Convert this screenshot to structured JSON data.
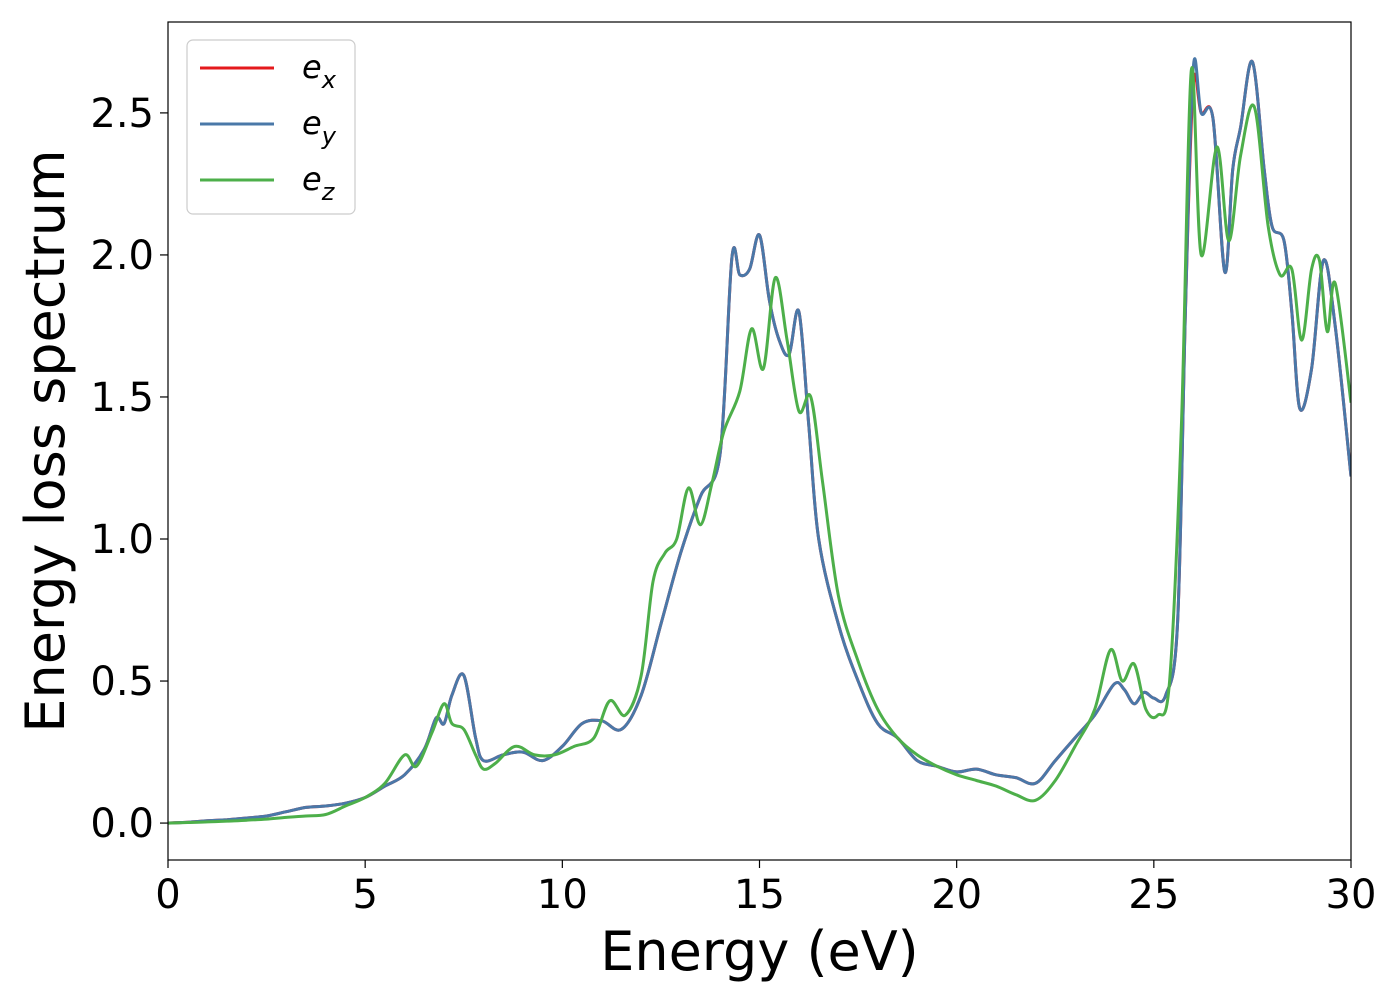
{
  "chart_data": {
    "type": "line",
    "xlabel": "Energy (eV)",
    "ylabel": "Energy loss spectrum",
    "xlim": [
      0,
      30
    ],
    "ylim": [
      -0.13,
      2.82
    ],
    "xticks": [
      "0",
      "5",
      "10",
      "15",
      "20",
      "25",
      "30"
    ],
    "yticks": [
      "0.0",
      "0.5",
      "1.0",
      "1.5",
      "2.0",
      "2.5"
    ],
    "grid": false,
    "legend_position": "top-left",
    "series": [
      {
        "name": "e",
        "subscript": "x",
        "color": "#e41a1c",
        "x": [
          0,
          0.5,
          1,
          1.5,
          2,
          2.5,
          3,
          3.5,
          4,
          4.5,
          5,
          5.5,
          6,
          6.5,
          6.8,
          7,
          7.2,
          7.5,
          7.8,
          8,
          8.5,
          9,
          9.5,
          10,
          10.5,
          11,
          11.5,
          12,
          12.5,
          13,
          13.5,
          14,
          14.3,
          14.5,
          14.75,
          15,
          15.25,
          15.5,
          15.75,
          16,
          16.25,
          16.5,
          17,
          17.5,
          18,
          18.5,
          19,
          19.5,
          20,
          20.5,
          21,
          21.5,
          22,
          22.5,
          23,
          23.5,
          24,
          24.25,
          24.5,
          24.75,
          25,
          25.3,
          25.6,
          25.8,
          26,
          26.2,
          26.5,
          26.8,
          27,
          27.2,
          27.5,
          27.8,
          28,
          28.3,
          28.5,
          28.7,
          29,
          29.3,
          29.6,
          30
        ],
        "y": [
          0,
          0.003,
          0.008,
          0.012,
          0.018,
          0.025,
          0.04,
          0.055,
          0.06,
          0.07,
          0.09,
          0.13,
          0.17,
          0.26,
          0.37,
          0.35,
          0.45,
          0.52,
          0.3,
          0.22,
          0.24,
          0.25,
          0.22,
          0.27,
          0.35,
          0.36,
          0.33,
          0.45,
          0.7,
          0.95,
          1.15,
          1.3,
          1.99,
          1.93,
          1.95,
          2.07,
          1.84,
          1.7,
          1.65,
          1.8,
          1.4,
          1.0,
          0.7,
          0.5,
          0.35,
          0.3,
          0.22,
          0.2,
          0.18,
          0.19,
          0.17,
          0.16,
          0.14,
          0.22,
          0.3,
          0.38,
          0.49,
          0.47,
          0.42,
          0.46,
          0.44,
          0.45,
          0.7,
          1.8,
          2.6,
          2.5,
          2.48,
          1.94,
          2.3,
          2.45,
          2.68,
          2.3,
          2.1,
          2.05,
          1.8,
          1.46,
          1.6,
          1.98,
          1.75,
          1.22
        ]
      },
      {
        "name": "e",
        "subscript": "y",
        "color": "#4a78a8",
        "x": [
          0,
          0.5,
          1,
          1.5,
          2,
          2.5,
          3,
          3.5,
          4,
          4.5,
          5,
          5.5,
          6,
          6.5,
          6.8,
          7,
          7.2,
          7.5,
          7.8,
          8,
          8.5,
          9,
          9.5,
          10,
          10.5,
          11,
          11.5,
          12,
          12.5,
          13,
          13.5,
          14,
          14.3,
          14.5,
          14.75,
          15,
          15.25,
          15.5,
          15.75,
          16,
          16.25,
          16.5,
          17,
          17.5,
          18,
          18.5,
          19,
          19.5,
          20,
          20.5,
          21,
          21.5,
          22,
          22.5,
          23,
          23.5,
          24,
          24.25,
          24.5,
          24.75,
          25,
          25.3,
          25.6,
          25.8,
          26,
          26.2,
          26.5,
          26.8,
          27,
          27.2,
          27.5,
          27.8,
          28,
          28.3,
          28.5,
          28.7,
          29,
          29.3,
          29.6,
          30
        ],
        "y": [
          0,
          0.003,
          0.008,
          0.012,
          0.018,
          0.025,
          0.04,
          0.055,
          0.06,
          0.07,
          0.09,
          0.13,
          0.17,
          0.26,
          0.37,
          0.35,
          0.45,
          0.52,
          0.3,
          0.22,
          0.24,
          0.25,
          0.22,
          0.27,
          0.35,
          0.36,
          0.33,
          0.45,
          0.7,
          0.95,
          1.15,
          1.3,
          1.99,
          1.93,
          1.95,
          2.07,
          1.84,
          1.7,
          1.65,
          1.8,
          1.4,
          1.0,
          0.7,
          0.5,
          0.35,
          0.3,
          0.22,
          0.2,
          0.18,
          0.19,
          0.17,
          0.16,
          0.14,
          0.22,
          0.3,
          0.38,
          0.49,
          0.47,
          0.42,
          0.46,
          0.44,
          0.45,
          0.7,
          1.8,
          2.66,
          2.5,
          2.48,
          1.94,
          2.3,
          2.45,
          2.68,
          2.3,
          2.1,
          2.05,
          1.8,
          1.46,
          1.6,
          1.98,
          1.75,
          1.22
        ]
      },
      {
        "name": "e",
        "subscript": "z",
        "color": "#4daf4a",
        "x": [
          0,
          0.5,
          1,
          1.5,
          2,
          2.5,
          3,
          3.5,
          4,
          4.5,
          5,
          5.5,
          6,
          6.3,
          6.7,
          7,
          7.2,
          7.5,
          7.8,
          8,
          8.3,
          8.8,
          9.3,
          9.8,
          10.3,
          10.8,
          11.2,
          11.6,
          12,
          12.3,
          12.6,
          12.9,
          13.2,
          13.5,
          13.8,
          14.1,
          14.5,
          14.8,
          15.1,
          15.4,
          15.7,
          16,
          16.3,
          16.6,
          17,
          17.5,
          18,
          18.5,
          19,
          19.5,
          20,
          20.5,
          21,
          21.5,
          22,
          22.5,
          23,
          23.5,
          23.9,
          24.2,
          24.5,
          24.8,
          25.1,
          25.4,
          25.7,
          25.95,
          26.2,
          26.6,
          26.9,
          27.2,
          27.55,
          27.9,
          28.2,
          28.5,
          28.75,
          29,
          29.2,
          29.4,
          29.6,
          30
        ],
        "y": [
          0,
          0.002,
          0.004,
          0.007,
          0.01,
          0.014,
          0.02,
          0.025,
          0.03,
          0.06,
          0.09,
          0.14,
          0.24,
          0.2,
          0.32,
          0.42,
          0.35,
          0.33,
          0.24,
          0.19,
          0.21,
          0.27,
          0.24,
          0.24,
          0.27,
          0.3,
          0.43,
          0.38,
          0.52,
          0.85,
          0.95,
          1.0,
          1.18,
          1.05,
          1.2,
          1.38,
          1.52,
          1.74,
          1.6,
          1.92,
          1.7,
          1.45,
          1.5,
          1.2,
          0.8,
          0.57,
          0.4,
          0.3,
          0.24,
          0.2,
          0.17,
          0.15,
          0.13,
          0.1,
          0.08,
          0.15,
          0.27,
          0.4,
          0.61,
          0.5,
          0.56,
          0.4,
          0.38,
          0.5,
          1.4,
          2.65,
          2.0,
          2.38,
          2.05,
          2.35,
          2.52,
          2.1,
          1.93,
          1.95,
          1.7,
          1.95,
          1.98,
          1.73,
          1.9,
          1.48
        ]
      }
    ]
  }
}
